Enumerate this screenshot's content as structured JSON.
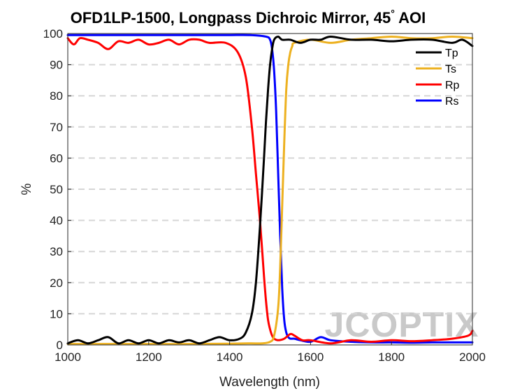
{
  "chart_data": {
    "type": "line",
    "title": "OFD1LP-1500, Longpass Dichroic Mirror, 45",
    "title_suffix": "AOI",
    "title_degree": "°",
    "xlabel": "Wavelength (nm)",
    "ylabel": "%",
    "xlim": [
      1000,
      2000
    ],
    "ylim": [
      0,
      100
    ],
    "xticks": [
      "1000",
      "1200",
      "1400",
      "1600",
      "1800",
      "2000"
    ],
    "yticks": [
      "0",
      "10",
      "20",
      "30",
      "40",
      "50",
      "60",
      "70",
      "80",
      "90",
      "100"
    ],
    "grid": "horizontal dashed",
    "legend_position": "top-right",
    "watermark": "JCOPTIX",
    "series": [
      {
        "name": "Tp",
        "color": "#000000",
        "x": [
          1000,
          1025,
          1050,
          1075,
          1100,
          1125,
          1150,
          1175,
          1200,
          1225,
          1250,
          1275,
          1300,
          1325,
          1350,
          1375,
          1400,
          1425,
          1440,
          1455,
          1465,
          1475,
          1485,
          1490,
          1495,
          1500,
          1505,
          1510,
          1520,
          1530,
          1550,
          1575,
          1600,
          1625,
          1650,
          1700,
          1750,
          1800,
          1850,
          1900,
          1950,
          1975,
          2000
        ],
        "y": [
          0.5,
          1.5,
          0.5,
          1.5,
          2.5,
          0.5,
          1.5,
          0.5,
          1.5,
          0.5,
          1.5,
          0.8,
          1.5,
          0.5,
          1.5,
          2.5,
          1.5,
          2.0,
          4,
          10,
          20,
          38,
          60,
          72,
          82,
          90,
          95,
          98,
          99,
          98,
          98,
          97,
          98,
          98,
          99,
          98,
          98,
          97.5,
          98,
          98,
          97,
          98,
          96
        ]
      },
      {
        "name": "Ts",
        "color": "#EDB120",
        "x": [
          1000,
          1100,
          1200,
          1300,
          1400,
          1450,
          1480,
          1500,
          1510,
          1520,
          1525,
          1530,
          1535,
          1540,
          1545,
          1550,
          1555,
          1560,
          1600,
          1650,
          1700,
          1750,
          1800,
          1850,
          1900,
          1950,
          2000
        ],
        "y": [
          0.3,
          0.3,
          0.3,
          0.3,
          0.4,
          0.5,
          0.5,
          1,
          3,
          12,
          25,
          45,
          65,
          82,
          90,
          94,
          96,
          97,
          98,
          97,
          98,
          98.5,
          99,
          98.5,
          98.5,
          99,
          98.5
        ]
      },
      {
        "name": "Rp",
        "color": "#FF0000",
        "x": [
          1000,
          1015,
          1030,
          1050,
          1075,
          1100,
          1125,
          1150,
          1175,
          1200,
          1225,
          1250,
          1275,
          1300,
          1325,
          1350,
          1390,
          1420,
          1440,
          1455,
          1465,
          1475,
          1485,
          1490,
          1495,
          1500,
          1505,
          1510,
          1520,
          1535,
          1550,
          1560,
          1580,
          1600,
          1650,
          1700,
          1750,
          1800,
          1850,
          1900,
          1950,
          1990,
          2000
        ],
        "y": [
          98.5,
          96.5,
          98.5,
          98,
          97,
          95,
          97.5,
          97,
          98,
          96.5,
          97,
          98,
          96.5,
          98,
          98,
          97,
          97,
          94,
          86,
          70,
          55,
          40,
          22,
          14,
          8,
          5,
          3,
          2,
          1.5,
          2,
          3.5,
          3,
          1.5,
          1.5,
          0.5,
          1.5,
          1.0,
          1.5,
          1.2,
          1.5,
          2.0,
          3.0,
          4.5
        ]
      },
      {
        "name": "Rs",
        "color": "#0000FF",
        "x": [
          1000,
          1050,
          1100,
          1150,
          1200,
          1250,
          1300,
          1350,
          1400,
          1450,
          1490,
          1500,
          1505,
          1510,
          1515,
          1520,
          1525,
          1530,
          1535,
          1540,
          1545,
          1550,
          1560,
          1575,
          1600,
          1625,
          1650,
          1700,
          1750,
          1800,
          1850,
          1900,
          1950,
          2000
        ],
        "y": [
          99.5,
          99.5,
          99.5,
          99.5,
          99.5,
          99.5,
          99.5,
          99.5,
          99.5,
          99.5,
          99,
          98,
          95,
          88,
          75,
          55,
          35,
          18,
          8,
          4,
          2.5,
          2,
          2,
          1.5,
          1.0,
          2.5,
          1.5,
          1,
          0.8,
          0.8,
          0.7,
          0.8,
          0.8,
          0.8
        ]
      }
    ]
  }
}
